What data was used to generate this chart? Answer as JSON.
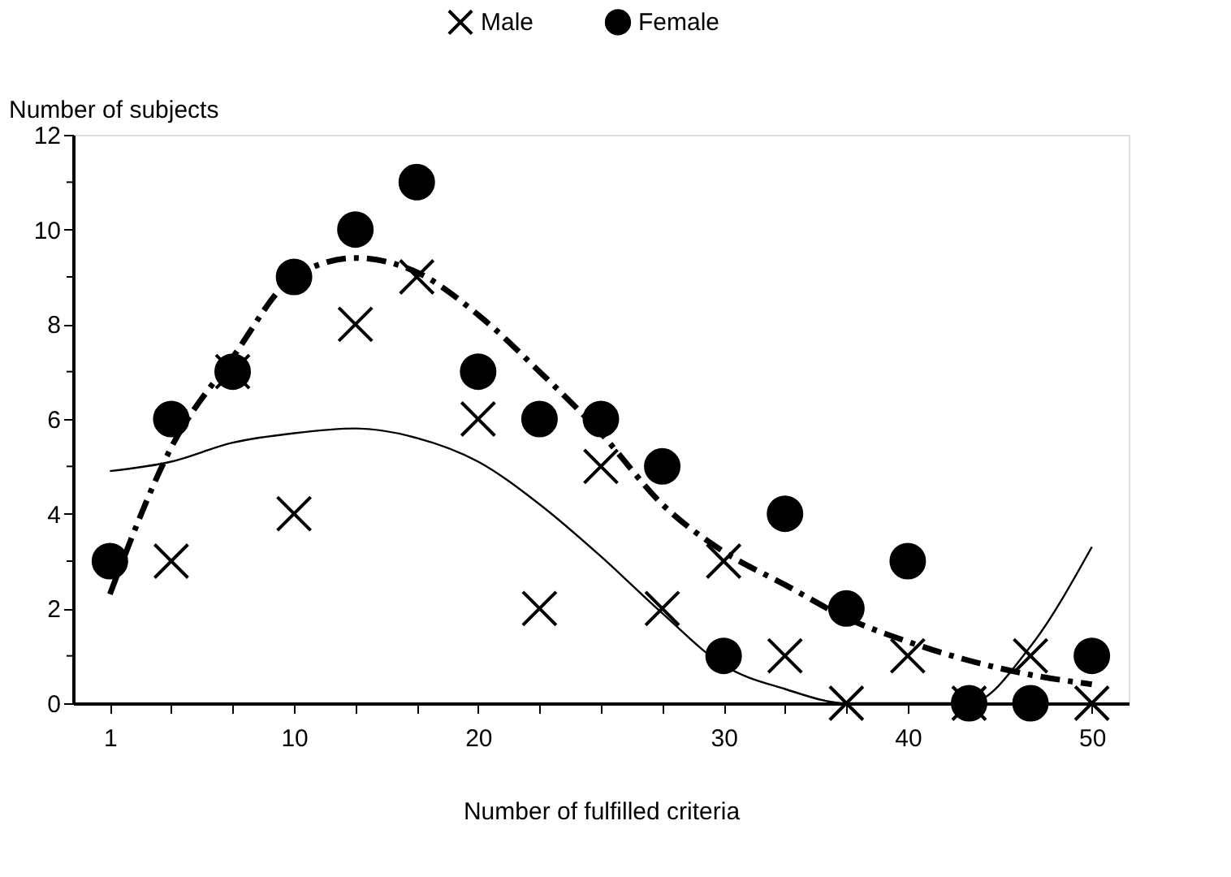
{
  "chart_data": {
    "type": "scatter",
    "xlabel": "Number of fulfilled criteria",
    "ylabel": "Number of subjects",
    "categories": [
      "1",
      null,
      null,
      "10",
      null,
      null,
      "20",
      null,
      null,
      null,
      "30",
      null,
      null,
      "40",
      null,
      null,
      "50"
    ],
    "series": [
      {
        "name": "Male",
        "marker": "cross",
        "color": "#000000",
        "values": [
          null,
          3,
          7,
          4,
          8,
          9,
          6,
          2,
          5,
          2,
          3,
          1,
          0,
          1,
          0,
          1,
          0
        ]
      },
      {
        "name": "Female",
        "marker": "circle",
        "color": "#000000",
        "values": [
          3,
          6,
          7,
          9,
          10,
          11,
          7,
          6,
          6,
          5,
          1,
          4,
          2,
          3,
          0,
          0,
          1
        ]
      },
      {
        "type": "line",
        "line_style": "dashdot",
        "color": "#000000",
        "values": [
          2.3,
          5.4,
          7.3,
          9.0,
          9.4,
          9.1,
          8.2,
          7.0,
          5.7,
          4.2,
          3.2,
          2.5,
          1.8,
          1.3,
          0.9,
          0.6,
          0.4
        ]
      },
      {
        "type": "line",
        "line_style": "solid",
        "color": "#000000",
        "values": [
          4.9,
          5.1,
          5.5,
          5.7,
          5.8,
          5.6,
          5.1,
          4.2,
          3.1,
          1.9,
          0.8,
          0.3,
          0,
          0,
          0,
          1.2,
          3.3
        ]
      }
    ],
    "ylim": [
      0,
      12
    ],
    "yticks": [
      0,
      {
        "value": 1,
        "label": null
      },
      2,
      {
        "value": 3,
        "label": null
      },
      4,
      {
        "value": 5,
        "label": null
      },
      6,
      {
        "value": 7,
        "label": null
      },
      8,
      {
        "value": 9,
        "label": null
      },
      10,
      {
        "value": 11,
        "label": null
      },
      12
    ],
    "grid": false,
    "legend": "top"
  }
}
